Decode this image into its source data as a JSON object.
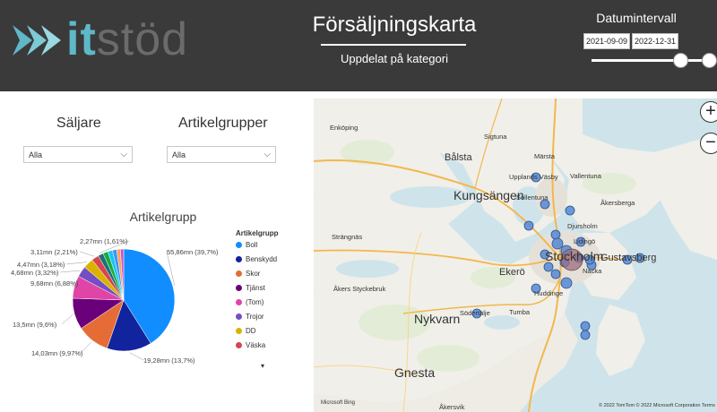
{
  "header": {
    "logo_it": "it",
    "logo_stod": "stöd",
    "title": "Försäljningskarta",
    "subtitle": "Uppdelat på kategori",
    "date_range_title": "Datumintervall",
    "date_from": "2021-09-09",
    "date_to": "2022-12-31"
  },
  "filters": {
    "saljare_label": "Säljare",
    "saljare_value": "Alla",
    "artikelgrupper_label": "Artikelgrupper",
    "artikelgrupper_value": "Alla"
  },
  "chart_data": {
    "type": "pie",
    "title": "Artikelgrupp",
    "legend_title": "Artikelgrupp",
    "legend_position": "right",
    "slices": [
      {
        "name": "Boll",
        "value": 55.86,
        "label": "55,86mn (39,7%)",
        "color": "#118DFF"
      },
      {
        "name": "Benskydd",
        "value": 19.28,
        "label": "19,28mn (13,7%)",
        "color": "#12239E"
      },
      {
        "name": "Skor",
        "value": 14.03,
        "label": "14,03mn (9,97%)",
        "color": "#E66C37"
      },
      {
        "name": "Tjänst",
        "value": 13.5,
        "label": "13,5mn (9,6%)",
        "color": "#6B007B"
      },
      {
        "name": "(Tom)",
        "value": 9.68,
        "label": "9,68mn (6,88%)",
        "color": "#E044A7"
      },
      {
        "name": "Trojor",
        "value": 4.68,
        "label": "4,68mn (3,32%)",
        "color": "#744EC2"
      },
      {
        "name": "DD",
        "value": 4.47,
        "label": "4,47mn (3,18%)",
        "color": "#D9B300"
      },
      {
        "name": "Väska",
        "value": 3.11,
        "label": "3,11mn (2,21%)",
        "color": "#D64550"
      },
      {
        "name": "",
        "value": 2.27,
        "label": "2,27mn (1,61%)",
        "color": "#197278"
      },
      {
        "name": "",
        "value": 2.2,
        "label": "",
        "color": "#1AAB40"
      },
      {
        "name": "",
        "value": 2.0,
        "label": "",
        "color": "#15C6F4"
      },
      {
        "name": "",
        "value": 1.8,
        "label": "",
        "color": "#4092FF"
      },
      {
        "name": "",
        "value": 1.6,
        "label": "",
        "color": "#FFA058"
      },
      {
        "name": "",
        "value": 1.4,
        "label": "",
        "color": "#BE5DC9"
      }
    ]
  },
  "map": {
    "places": [
      {
        "name": "Enköping",
        "size": "small"
      },
      {
        "name": "Sigtuna",
        "size": "small"
      },
      {
        "name": "Märsta",
        "size": "small"
      },
      {
        "name": "Bålsta",
        "size": "medium"
      },
      {
        "name": "Upplands Väsby",
        "size": "small"
      },
      {
        "name": "Åkersberga",
        "size": "small"
      },
      {
        "name": "Kungsängen",
        "size": "large"
      },
      {
        "name": "Vallentuna",
        "size": "small"
      },
      {
        "name": "Sollentuna",
        "size": "small"
      },
      {
        "name": "Djursholm",
        "size": "small"
      },
      {
        "name": "Strängnäs",
        "size": "small"
      },
      {
        "name": "Lidingö",
        "size": "small"
      },
      {
        "name": "Stockholm",
        "size": "large"
      },
      {
        "name": "Gustavsberg",
        "size": "medium"
      },
      {
        "name": "Ekerö",
        "size": "medium"
      },
      {
        "name": "Nacka",
        "size": "small"
      },
      {
        "name": "Åkers Styckebruk",
        "size": "small"
      },
      {
        "name": "Huddinge",
        "size": "small"
      },
      {
        "name": "Tumba",
        "size": "small"
      },
      {
        "name": "Nykvarn",
        "size": "large"
      },
      {
        "name": "Södertälje",
        "size": "small"
      },
      {
        "name": "Gnesta",
        "size": "large"
      },
      {
        "name": "Åkersvik",
        "size": "small"
      }
    ],
    "bing_text": "Microsoft Bing",
    "copyright": "© 2022 TomTom  © 2022 Microsoft Corporation  Terms"
  },
  "icons": {
    "zoom_in": "+",
    "zoom_out": "−",
    "dropdown_chevron": "⌵",
    "legend_more": "▾"
  }
}
